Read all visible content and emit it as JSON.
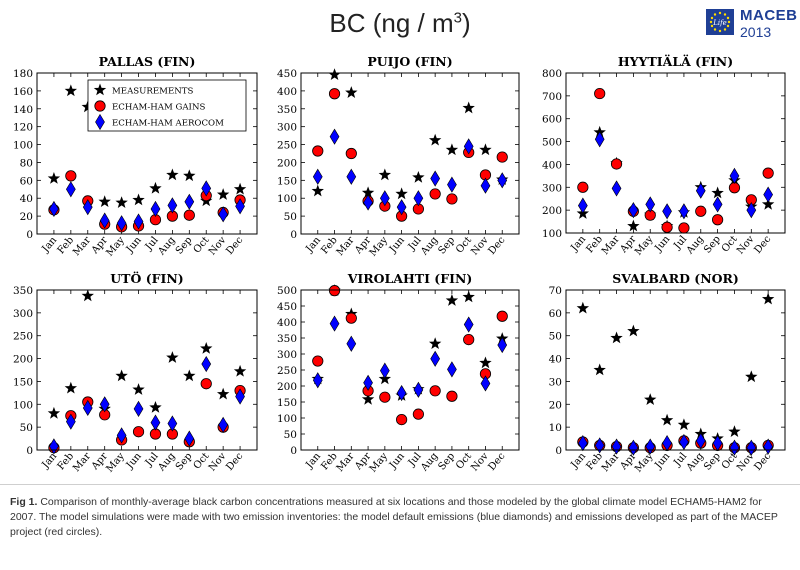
{
  "page": {
    "title_text": "BC (ng / m",
    "title_sup": "3",
    "title_close": ")",
    "logo_name": "MACEB",
    "logo_year": "2013",
    "logo_flag_text": "Life",
    "caption_bold": "Fig 1.",
    "caption_text": " Comparison of monthly-average black carbon concentrations measured at six locations and those modeled by the global climate model ECHAM5-HAM2 for 2007. The model simulations were made with two emission inventories: the model default emissions (blue diamonds) and emissions developed as part of the MACEP project (red circles)."
  },
  "colors": {
    "measurement": "#000000",
    "gains": "#ff0000",
    "aerocom": "#0000ff"
  },
  "legend": {
    "entries": [
      "MEASUREMENTS",
      "ECHAM-HAM GAINS",
      "ECHAM-HAM AEROCOM"
    ],
    "placement": "top-center of first panel"
  },
  "chart_data": [
    {
      "type": "scatter",
      "title": "PALLAS (FIN)",
      "categories": [
        "Jan",
        "Feb",
        "Mar",
        "Apr",
        "May",
        "Jun",
        "Jul",
        "Aug",
        "Sep",
        "Oct",
        "Nov",
        "Dec"
      ],
      "ylim": [
        0,
        180
      ],
      "yticks": [
        0,
        20,
        40,
        60,
        80,
        100,
        120,
        140,
        160,
        180
      ],
      "series": [
        {
          "name": "MEASUREMENTS",
          "marker": "star",
          "values": [
            62,
            160,
            142,
            36,
            35,
            38,
            51,
            66,
            65,
            37,
            44,
            50
          ]
        },
        {
          "name": "ECHAM-HAM GAINS",
          "marker": "circle",
          "values": [
            27,
            65,
            37,
            11,
            8,
            9,
            16,
            20,
            21,
            43,
            24,
            38
          ]
        },
        {
          "name": "ECHAM-HAM AEROCOM",
          "marker": "diamond",
          "values": [
            28,
            50,
            30,
            15,
            12,
            14,
            28,
            32,
            36,
            51,
            22,
            31
          ]
        }
      ]
    },
    {
      "type": "scatter",
      "title": "PUIJO (FIN)",
      "categories": [
        "Jan",
        "Feb",
        "Mar",
        "Apr",
        "May",
        "Jun",
        "Jul",
        "Aug",
        "Sep",
        "Oct",
        "Nov",
        "Dec"
      ],
      "ylim": [
        0,
        450
      ],
      "yticks": [
        0,
        50,
        100,
        150,
        200,
        250,
        300,
        350,
        400,
        450
      ],
      "series": [
        {
          "name": "MEASUREMENTS",
          "marker": "star",
          "values": [
            120,
            445,
            395,
            115,
            165,
            112,
            158,
            262,
            235,
            352,
            235,
            152
          ]
        },
        {
          "name": "ECHAM-HAM GAINS",
          "marker": "circle",
          "values": [
            232,
            392,
            225,
            92,
            78,
            50,
            70,
            112,
            98,
            228,
            165,
            215
          ]
        },
        {
          "name": "ECHAM-HAM AEROCOM",
          "marker": "diamond",
          "values": [
            160,
            272,
            160,
            88,
            100,
            75,
            100,
            155,
            138,
            245,
            135,
            150
          ]
        }
      ]
    },
    {
      "type": "scatter",
      "title": "HYYTIÄLÄ (FIN)",
      "categories": [
        "Jan",
        "Feb",
        "Mar",
        "Apr",
        "May",
        "Jun",
        "Jul",
        "Aug",
        "Sep",
        "Oct",
        "Nov",
        "Dec"
      ],
      "ylim": [
        100,
        800
      ],
      "yticks": [
        100,
        200,
        300,
        400,
        500,
        600,
        700,
        800
      ],
      "series": [
        {
          "name": "MEASUREMENTS",
          "marker": "star",
          "values": [
            185,
            540,
            405,
            130,
            180,
            130,
            190,
            300,
            275,
            330,
            215,
            225
          ]
        },
        {
          "name": "ECHAM-HAM GAINS",
          "marker": "circle",
          "values": [
            300,
            710,
            402,
            195,
            178,
            125,
            122,
            195,
            158,
            298,
            245,
            362
          ]
        },
        {
          "name": "ECHAM-HAM AEROCOM",
          "marker": "diamond",
          "values": [
            220,
            510,
            295,
            200,
            225,
            195,
            195,
            285,
            225,
            350,
            200,
            268
          ]
        }
      ]
    },
    {
      "type": "scatter",
      "title": "UTÖ (FIN)",
      "categories": [
        "Jan",
        "Feb",
        "Mar",
        "Apr",
        "May",
        "Jun",
        "Jul",
        "Aug",
        "Sep",
        "Oct",
        "Nov",
        "Dec"
      ],
      "ylim": [
        0,
        350
      ],
      "yticks": [
        0,
        50,
        100,
        150,
        200,
        250,
        300,
        350
      ],
      "series": [
        {
          "name": "MEASUREMENTS",
          "marker": "star",
          "values": [
            80,
            135,
            337,
            90,
            162,
            132,
            93,
            202,
            162,
            222,
            122,
            172
          ]
        },
        {
          "name": "ECHAM-HAM GAINS",
          "marker": "circle",
          "values": [
            5,
            75,
            105,
            77,
            22,
            40,
            35,
            35,
            18,
            145,
            50,
            130
          ]
        },
        {
          "name": "ECHAM-HAM AEROCOM",
          "marker": "diamond",
          "values": [
            8,
            62,
            92,
            100,
            32,
            90,
            60,
            58,
            25,
            188,
            55,
            117
          ]
        }
      ]
    },
    {
      "type": "scatter",
      "title": "VIROLAHTI (FIN)",
      "categories": [
        "Jan",
        "Feb",
        "Mar",
        "Apr",
        "May",
        "Jun",
        "Jul",
        "Aug",
        "Sep",
        "Oct",
        "Nov",
        "Dec"
      ],
      "ylim": [
        0,
        500
      ],
      "yticks": [
        0,
        50,
        100,
        150,
        200,
        250,
        300,
        350,
        400,
        450,
        500
      ],
      "series": [
        {
          "name": "MEASUREMENTS",
          "marker": "star",
          "values": [
            222,
            498,
            425,
            158,
            222,
            170,
            190,
            332,
            467,
            478,
            272,
            348
          ]
        },
        {
          "name": "ECHAM-HAM GAINS",
          "marker": "circle",
          "values": [
            278,
            498,
            412,
            185,
            165,
            95,
            112,
            185,
            168,
            345,
            238,
            418
          ]
        },
        {
          "name": "ECHAM-HAM AEROCOM",
          "marker": "diamond",
          "values": [
            218,
            395,
            332,
            210,
            248,
            178,
            188,
            285,
            252,
            392,
            208,
            328
          ]
        }
      ]
    },
    {
      "type": "scatter",
      "title": "SVALBARD (NOR)",
      "categories": [
        "Jan",
        "Feb",
        "Mar",
        "Apr",
        "May",
        "Jun",
        "Jul",
        "Aug",
        "Sep",
        "Oct",
        "Nov",
        "Dec"
      ],
      "ylim": [
        0,
        70
      ],
      "yticks": [
        0,
        10,
        20,
        30,
        40,
        50,
        60,
        70
      ],
      "series": [
        {
          "name": "MEASUREMENTS",
          "marker": "star",
          "values": [
            62,
            35,
            49,
            52,
            22,
            13,
            11,
            7,
            5,
            8,
            32,
            66
          ]
        },
        {
          "name": "ECHAM-HAM GAINS",
          "marker": "circle",
          "values": [
            3.5,
            2,
            1.5,
            1,
            1,
            2,
            4,
            3,
            2,
            1,
            1,
            2
          ]
        },
        {
          "name": "ECHAM-HAM AEROCOM",
          "marker": "diamond",
          "values": [
            3,
            2,
            1.5,
            1,
            1.5,
            3,
            3.5,
            4,
            3,
            1,
            1,
            1.5
          ]
        }
      ]
    }
  ]
}
